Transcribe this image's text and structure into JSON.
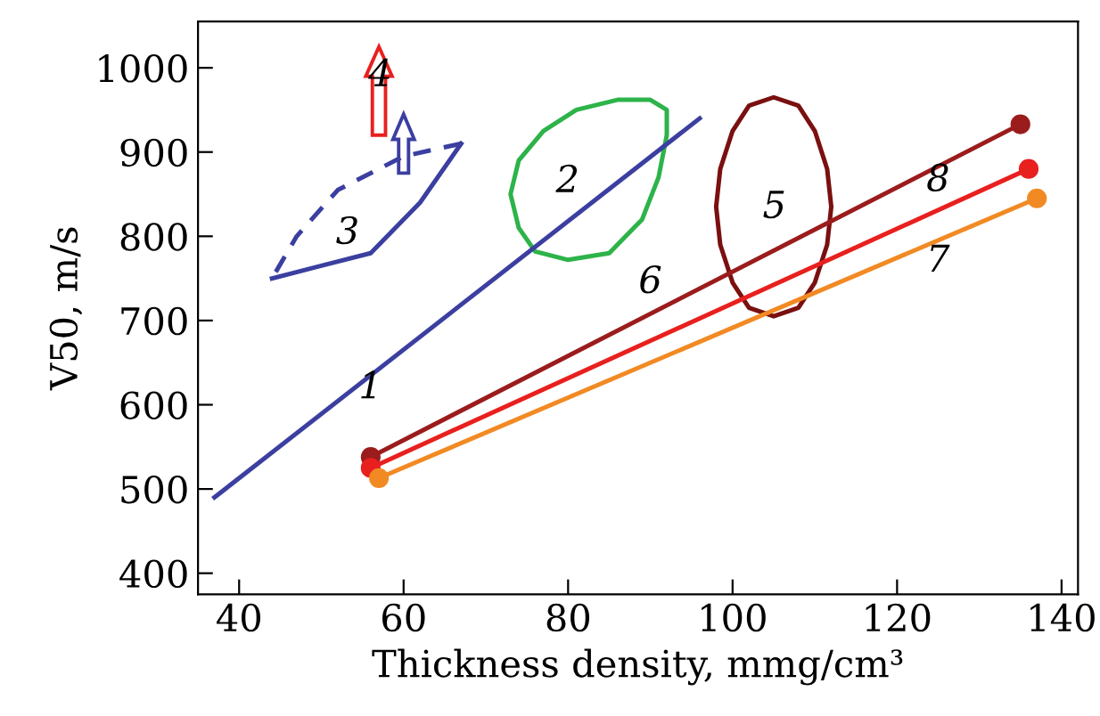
{
  "chart_data": {
    "type": "line",
    "xlabel": "Thickness density, mmg/cm³",
    "ylabel": "V50, m/s",
    "xlim": [
      35,
      142
    ],
    "ylim": [
      375,
      1055
    ],
    "xticks": [
      40,
      60,
      80,
      100,
      120,
      140
    ],
    "yticks": [
      400,
      500,
      600,
      700,
      800,
      900,
      1000
    ],
    "grid": false,
    "legend": false,
    "series": [
      {
        "color": "#3b3fa0",
        "x": [
          37,
          96
        ],
        "values": [
          490,
          940
        ],
        "marker": "none",
        "line_style": "solid"
      },
      {
        "color": "#9b1c1c",
        "x": [
          56,
          135
        ],
        "values": [
          538,
          933
        ],
        "marker": "circle",
        "line_style": "solid"
      },
      {
        "color": "#e8201e",
        "x": [
          56,
          136
        ],
        "values": [
          525,
          880
        ],
        "marker": "circle",
        "line_style": "solid"
      },
      {
        "color": "#f28a24",
        "x": [
          57,
          137
        ],
        "values": [
          513,
          845
        ],
        "marker": "circle",
        "line_style": "solid"
      }
    ],
    "annotations": [
      "1",
      "2",
      "3",
      "4",
      "5",
      "6",
      "7",
      "8"
    ]
  }
}
